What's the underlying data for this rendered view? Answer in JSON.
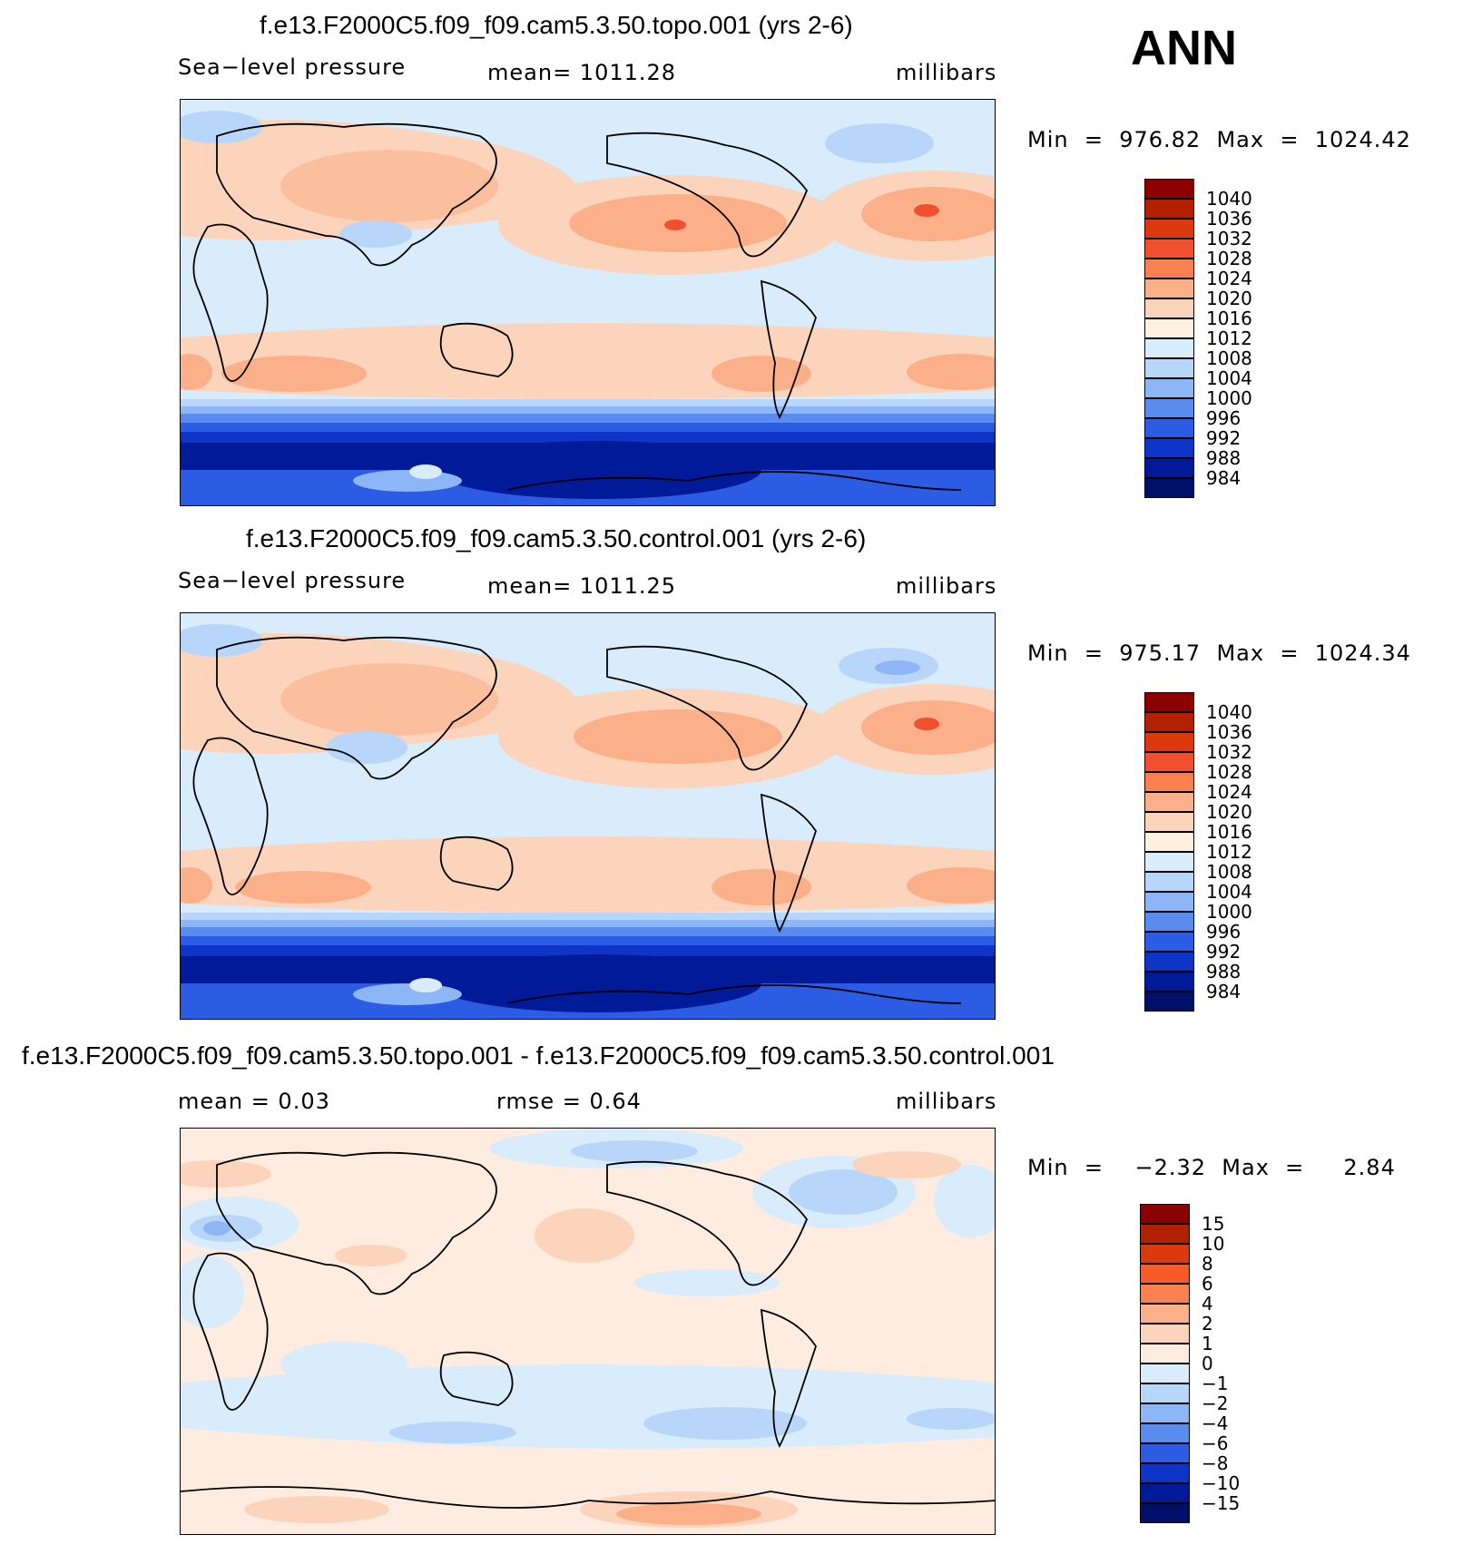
{
  "season": "ANN",
  "panels": [
    {
      "title": "f.e13.F2000C5.f09_f09.cam5.3.50.topo.001 (yrs 2-6)",
      "left_label": "Sea−level pressure",
      "center_label": "mean=  1011.28",
      "units": "millibars",
      "minmax": "Min  =  976.82  Max  =  1024.42",
      "colorbar": [
        "1040",
        "1036",
        "1032",
        "1028",
        "1024",
        "1020",
        "1016",
        "1012",
        "1008",
        "1004",
        "1000",
        "996",
        "992",
        "988",
        "984"
      ]
    },
    {
      "title": "f.e13.F2000C5.f09_f09.cam5.3.50.control.001 (yrs 2-6)",
      "left_label": "Sea−level pressure",
      "center_label": "mean=  1011.25",
      "units": "millibars",
      "minmax": "Min  =  975.17  Max  =  1024.34",
      "colorbar": [
        "1040",
        "1036",
        "1032",
        "1028",
        "1024",
        "1020",
        "1016",
        "1012",
        "1008",
        "1004",
        "1000",
        "996",
        "992",
        "988",
        "984"
      ]
    },
    {
      "title": "f.e13.F2000C5.f09_f09.cam5.3.50.topo.001 - f.e13.F2000C5.f09_f09.cam5.3.50.control.001",
      "left_label": "mean  =     0.03",
      "center_label": "rmse  =     0.64",
      "units": "millibars",
      "minmax": "Min  =    −2.32  Max  =     2.84",
      "colorbar": [
        "15",
        "10",
        "8",
        "6",
        "4",
        "2",
        "1",
        "0",
        "−1",
        "−2",
        "−4",
        "−6",
        "−8",
        "−10",
        "−15"
      ]
    }
  ],
  "colors": {
    "abs_scale": [
      "#8b0000",
      "#b22000",
      "#dc3a0c",
      "#f05030",
      "#fa8050",
      "#fbb08a",
      "#fcd4bc",
      "#fff0e0",
      "#d8ecfc",
      "#b8d6fa",
      "#8cb6f6",
      "#5a8cf0",
      "#2c5ce4",
      "#0f34c8",
      "#001a9a",
      "#00106a"
    ],
    "diff_scale": [
      "#8b0000",
      "#b22000",
      "#dc3a0c",
      "#fa5a2a",
      "#fa8050",
      "#fbb08a",
      "#fcd4bc",
      "#feece0",
      "#d8ecfc",
      "#b8d6fa",
      "#8cb6f6",
      "#5a8cf0",
      "#2c5ce4",
      "#0f34c8",
      "#001a9a",
      "#00106a"
    ]
  },
  "chart_data": [
    {
      "type": "heatmap",
      "title": "f.e13.F2000C5.f09_f09.cam5.3.50.topo.001 (yrs 2-6)",
      "variable": "Sea−level pressure",
      "units": "millibars",
      "mean": 1011.28,
      "min": 976.82,
      "max": 1024.42,
      "levels": [
        984,
        988,
        992,
        996,
        1000,
        1004,
        1008,
        1012,
        1016,
        1020,
        1024,
        1028,
        1032,
        1036,
        1040
      ]
    },
    {
      "type": "heatmap",
      "title": "f.e13.F2000C5.f09_f09.cam5.3.50.control.001 (yrs 2-6)",
      "variable": "Sea−level pressure",
      "units": "millibars",
      "mean": 1011.25,
      "min": 975.17,
      "max": 1024.34,
      "levels": [
        984,
        988,
        992,
        996,
        1000,
        1004,
        1008,
        1012,
        1016,
        1020,
        1024,
        1028,
        1032,
        1036,
        1040
      ]
    },
    {
      "type": "heatmap",
      "title": "f.e13.F2000C5.f09_f09.cam5.3.50.topo.001 - f.e13.F2000C5.f09_f09.cam5.3.50.control.001",
      "units": "millibars",
      "mean": 0.03,
      "rmse": 0.64,
      "min": -2.32,
      "max": 2.84,
      "levels": [
        -15,
        -10,
        -8,
        -6,
        -4,
        -2,
        -1,
        0,
        1,
        2,
        4,
        6,
        8,
        10,
        15
      ]
    }
  ]
}
